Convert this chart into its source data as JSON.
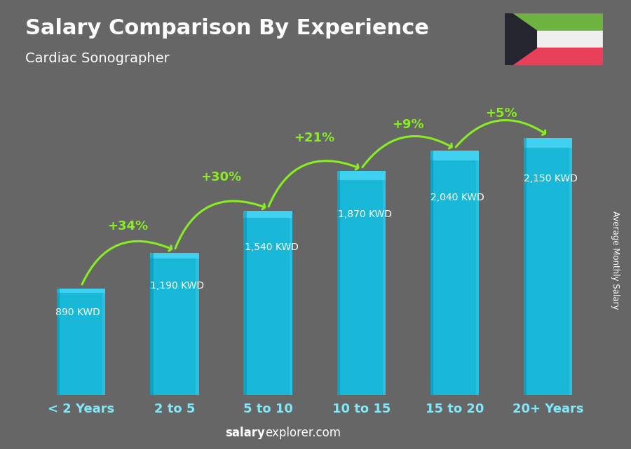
{
  "title": "Salary Comparison By Experience",
  "subtitle": "Cardiac Sonographer",
  "categories": [
    "< 2 Years",
    "2 to 5",
    "5 to 10",
    "10 to 15",
    "15 to 20",
    "20+ Years"
  ],
  "values": [
    890,
    1190,
    1540,
    1870,
    2040,
    2150
  ],
  "labels": [
    "890 KWD",
    "1,190 KWD",
    "1,540 KWD",
    "1,870 KWD",
    "2,040 KWD",
    "2,150 KWD"
  ],
  "pct_changes": [
    "+34%",
    "+30%",
    "+21%",
    "+9%",
    "+5%"
  ],
  "bar_color_main": "#1ab8d8",
  "bar_color_light": "#40d0f0",
  "bar_color_dark": "#0090b0",
  "background_color": "#666666",
  "text_color_white": "#ffffff",
  "text_color_cyan": "#80e8f8",
  "text_color_green": "#88ee22",
  "ylabel": "Average Monthly Salary",
  "footer_bold": "salary",
  "footer_regular": "explorer.com",
  "ylim_max": 2700,
  "bar_width": 0.52
}
